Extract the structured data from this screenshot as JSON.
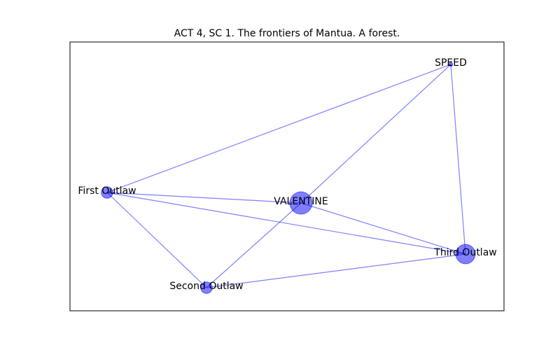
{
  "title": "ACT 4, SC 1. The frontiers of Mantua. A forest.",
  "colors": {
    "edge": "#0000ff",
    "node_fill": "#0000ff",
    "node_stroke": "#0000ff",
    "frame": "#000000",
    "background": "#ffffff"
  },
  "nodes": [
    {
      "id": "speed",
      "label": "SPEED",
      "weight": 0.05
    },
    {
      "id": "first-outlaw",
      "label": "First Outlaw",
      "weight": 0.45
    },
    {
      "id": "valentine",
      "label": "VALENTINE",
      "weight": 1.0
    },
    {
      "id": "third-outlaw",
      "label": "Third Outlaw",
      "weight": 0.85
    },
    {
      "id": "second-outlaw",
      "label": "Second Outlaw",
      "weight": 0.45
    }
  ],
  "edges": [
    {
      "source": "speed",
      "target": "first-outlaw"
    },
    {
      "source": "speed",
      "target": "valentine"
    },
    {
      "source": "speed",
      "target": "third-outlaw"
    },
    {
      "source": "first-outlaw",
      "target": "valentine"
    },
    {
      "source": "first-outlaw",
      "target": "third-outlaw"
    },
    {
      "source": "first-outlaw",
      "target": "second-outlaw"
    },
    {
      "source": "valentine",
      "target": "third-outlaw"
    },
    {
      "source": "valentine",
      "target": "second-outlaw"
    },
    {
      "source": "second-outlaw",
      "target": "third-outlaw"
    }
  ]
}
